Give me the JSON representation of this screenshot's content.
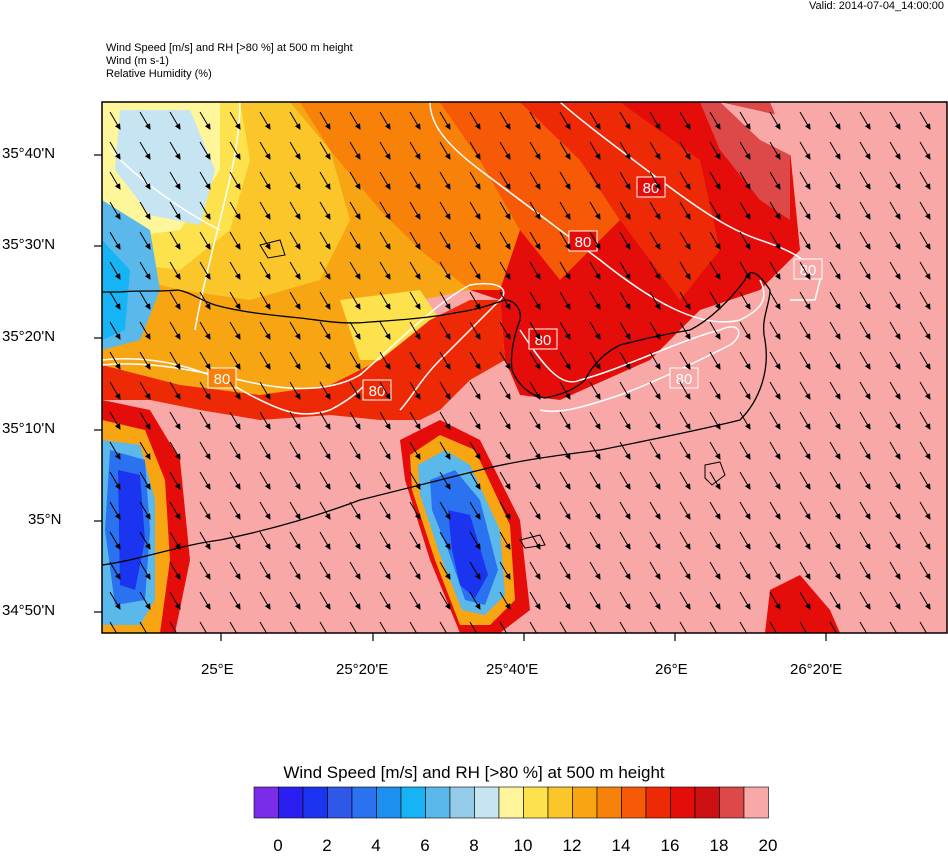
{
  "valid": "Valid: 2014-07-04_14:00:00",
  "header": {
    "line1": "Wind Speed [m/s] and RH [>80 %] at 500 m height",
    "line2": "Wind   (m s-1)",
    "line3": "Relative Humidity   (%)"
  },
  "lat_labels": [
    "35°40'N",
    "35°30'N",
    "35°20'N",
    "35°10'N",
    "35°N",
    "34°50'N"
  ],
  "lon_labels": [
    "25°E",
    "25°20'E",
    "25°40'E",
    "26°E",
    "26°20'E"
  ],
  "contour_label": "80",
  "colorbar": {
    "title": "Wind Speed [m/s] and RH [>80 %] at 500 m height",
    "labels": [
      "0",
      "2",
      "4",
      "6",
      "8",
      "10",
      "12",
      "14",
      "16",
      "18",
      "20"
    ],
    "colors": [
      "#7b2ce8",
      "#2a1ff0",
      "#1a34ef",
      "#2f58e8",
      "#2a72ef",
      "#1d8fef",
      "#16b4f4",
      "#5ab9ea",
      "#93cbe8",
      "#c6e4f2",
      "#fff59a",
      "#fde24d",
      "#fbc62a",
      "#f8a514",
      "#f88109",
      "#f65a07",
      "#ee2a06",
      "#e50d0a",
      "#cd1012",
      "#dd4848",
      "#f9a8a8"
    ]
  }
}
